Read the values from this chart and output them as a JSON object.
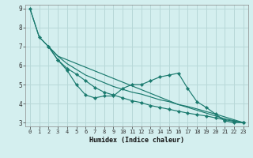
{
  "title": "",
  "xlabel": "Humidex (Indice chaleur)",
  "ylabel": "",
  "xlim": [
    -0.5,
    23.5
  ],
  "ylim": [
    2.8,
    9.2
  ],
  "yticks": [
    3,
    4,
    5,
    6,
    7,
    8,
    9
  ],
  "xticks": [
    0,
    1,
    2,
    3,
    4,
    5,
    6,
    7,
    8,
    9,
    10,
    11,
    12,
    13,
    14,
    15,
    16,
    17,
    18,
    19,
    20,
    21,
    22,
    23
  ],
  "bg_color": "#d4efef",
  "grid_color": "#b8d8d8",
  "line_color": "#1a7a6e",
  "line1_markers": {
    "x": [
      0,
      1,
      2,
      3,
      4,
      5,
      6,
      7,
      8,
      9,
      10,
      11,
      12,
      13,
      14,
      15,
      16,
      17,
      18,
      19,
      20,
      21,
      22,
      23
    ],
    "y": [
      9.0,
      7.5,
      7.0,
      6.3,
      5.75,
      5.0,
      4.45,
      4.3,
      4.4,
      4.4,
      4.8,
      5.0,
      5.0,
      5.2,
      5.4,
      5.5,
      5.6,
      4.8,
      4.1,
      3.8,
      3.45,
      3.1,
      3.0,
      3.0
    ]
  },
  "line2_smooth": {
    "x": [
      0,
      1,
      2,
      3,
      4,
      5,
      6,
      7,
      8,
      9,
      10,
      11,
      12,
      13,
      14,
      15,
      16,
      17,
      18,
      19,
      20,
      21,
      22,
      23
    ],
    "y": [
      9.0,
      7.5,
      7.0,
      6.5,
      6.1,
      5.8,
      5.5,
      5.3,
      5.1,
      4.9,
      4.75,
      4.6,
      4.5,
      4.35,
      4.2,
      4.1,
      3.95,
      3.8,
      3.65,
      3.5,
      3.35,
      3.2,
      3.1,
      3.0
    ]
  },
  "line3_markers": {
    "x": [
      2,
      3,
      4,
      5,
      6,
      7,
      8,
      9,
      10,
      11,
      12,
      13,
      14,
      15,
      16,
      17,
      18,
      19,
      20,
      21,
      22,
      23
    ],
    "y": [
      7.0,
      6.3,
      5.85,
      5.55,
      5.2,
      4.85,
      4.6,
      4.45,
      4.3,
      4.15,
      4.05,
      3.9,
      3.8,
      3.7,
      3.6,
      3.5,
      3.42,
      3.35,
      3.25,
      3.15,
      3.07,
      3.0
    ]
  },
  "line4_straight": {
    "x": [
      2,
      3,
      16,
      17,
      18,
      19,
      20,
      21,
      22,
      23
    ],
    "y": [
      7.0,
      6.5,
      3.95,
      3.85,
      3.72,
      3.58,
      3.45,
      3.3,
      3.15,
      3.0
    ]
  }
}
